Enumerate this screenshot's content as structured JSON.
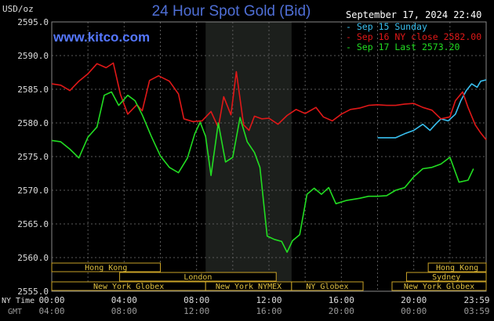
{
  "title": "24 Hour Spot Gold (Bid)",
  "site": "www.kitco.com",
  "unit_label": "USD/oz",
  "timestamp": "September 17, 2024 22:40",
  "legend": [
    {
      "label": "Sep 15 Sunday",
      "color": "#39c0f0"
    },
    {
      "label": "Sep 16 NY close 2582.00",
      "color": "#e01818"
    },
    {
      "label": "Sep 17 Last 2573.20",
      "color": "#22dd22"
    }
  ],
  "row_labels": {
    "ny_time": "NY Time",
    "gmt": "GMT"
  },
  "chart_data": {
    "type": "line",
    "title": "24 Hour Spot Gold (Bid)",
    "ylabel": "USD/oz",
    "ylim": [
      2555,
      2595
    ],
    "yticks": [
      "2555.0",
      "2560.0",
      "2565.0",
      "2570.0",
      "2575.0",
      "2580.0",
      "2585.0",
      "2590.0",
      "2595.0"
    ],
    "xlim": [
      0,
      24
    ],
    "xticks_ny": [
      "00:00",
      "04:00",
      "08:00",
      "12:00",
      "16:00",
      "20:00",
      "23:59"
    ],
    "xticks_gmt": [
      "04:00",
      "08:00",
      "12:00",
      "16:00",
      "20:00",
      "00:00",
      "03:59"
    ],
    "grid": true,
    "shaded_hours": [
      8.5,
      13.25
    ],
    "sessions": [
      {
        "name": "Hong Kong",
        "start": 0,
        "end": 6
      },
      {
        "name": "Hong Kong",
        "start": 20.8,
        "end": 24
      },
      {
        "name": "London",
        "start": 3.75,
        "end": 12.4
      },
      {
        "name": "Sydney",
        "start": 19.6,
        "end": 24
      },
      {
        "name": "New York Globex",
        "start": 0,
        "end": 8.5
      },
      {
        "name": "New York NYMEX",
        "start": 8.5,
        "end": 13.25
      },
      {
        "name": "NY Globex",
        "start": 13.25,
        "end": 17.2
      },
      {
        "name": "New York Globex",
        "start": 18.8,
        "end": 24
      }
    ],
    "series": [
      {
        "name": "Sep 15 Sunday",
        "color": "#39c0f0",
        "points": [
          [
            18.0,
            2577.8
          ],
          [
            18.5,
            2577.8
          ],
          [
            19.0,
            2577.8
          ],
          [
            19.5,
            2578.4
          ],
          [
            20.0,
            2578.9
          ],
          [
            20.5,
            2579.8
          ],
          [
            20.9,
            2578.9
          ],
          [
            21.2,
            2579.8
          ],
          [
            21.5,
            2580.6
          ],
          [
            21.9,
            2580.3
          ],
          [
            22.3,
            2581.3
          ],
          [
            22.6,
            2583.3
          ],
          [
            22.9,
            2584.8
          ],
          [
            23.2,
            2585.8
          ],
          [
            23.5,
            2585.3
          ],
          [
            23.7,
            2586.2
          ],
          [
            24.0,
            2586.4
          ]
        ]
      },
      {
        "name": "Sep 16 NY close 2582.00",
        "color": "#e01818",
        "points": [
          [
            0.0,
            2585.8
          ],
          [
            0.5,
            2585.6
          ],
          [
            1.0,
            2584.8
          ],
          [
            1.5,
            2586.2
          ],
          [
            2.0,
            2587.3
          ],
          [
            2.5,
            2588.8
          ],
          [
            3.0,
            2588.2
          ],
          [
            3.4,
            2588.9
          ],
          [
            3.8,
            2584.2
          ],
          [
            4.2,
            2581.3
          ],
          [
            4.7,
            2582.7
          ],
          [
            5.0,
            2581.8
          ],
          [
            5.4,
            2586.3
          ],
          [
            5.9,
            2587.0
          ],
          [
            6.5,
            2586.2
          ],
          [
            7.0,
            2584.3
          ],
          [
            7.3,
            2580.6
          ],
          [
            7.8,
            2580.2
          ],
          [
            8.3,
            2580.3
          ],
          [
            8.8,
            2581.7
          ],
          [
            9.2,
            2579.3
          ],
          [
            9.5,
            2583.9
          ],
          [
            9.9,
            2581.2
          ],
          [
            10.2,
            2587.6
          ],
          [
            10.6,
            2579.7
          ],
          [
            10.9,
            2578.9
          ],
          [
            11.2,
            2581.0
          ],
          [
            11.6,
            2580.6
          ],
          [
            12.0,
            2580.7
          ],
          [
            12.5,
            2579.8
          ],
          [
            13.0,
            2581.1
          ],
          [
            13.5,
            2582.0
          ],
          [
            14.0,
            2581.4
          ],
          [
            14.6,
            2582.3
          ],
          [
            15.0,
            2580.9
          ],
          [
            15.5,
            2580.3
          ],
          [
            16.0,
            2581.3
          ],
          [
            16.5,
            2582.0
          ],
          [
            17.0,
            2582.2
          ],
          [
            17.5,
            2582.6
          ],
          [
            18.0,
            2582.7
          ],
          [
            18.5,
            2582.6
          ],
          [
            19.0,
            2582.6
          ],
          [
            19.5,
            2582.8
          ],
          [
            20.0,
            2582.9
          ],
          [
            20.5,
            2582.3
          ],
          [
            21.0,
            2581.9
          ],
          [
            21.5,
            2580.6
          ],
          [
            22.0,
            2580.9
          ],
          [
            22.3,
            2583.3
          ],
          [
            22.7,
            2584.6
          ],
          [
            23.0,
            2582.3
          ],
          [
            23.4,
            2579.7
          ],
          [
            23.7,
            2578.5
          ],
          [
            24.0,
            2577.5
          ]
        ]
      },
      {
        "name": "Sep 17 Last 2573.20",
        "color": "#22dd22",
        "points": [
          [
            0.0,
            2577.4
          ],
          [
            0.5,
            2577.2
          ],
          [
            1.0,
            2576.1
          ],
          [
            1.5,
            2574.8
          ],
          [
            2.0,
            2577.9
          ],
          [
            2.5,
            2579.4
          ],
          [
            2.9,
            2584.1
          ],
          [
            3.3,
            2584.6
          ],
          [
            3.7,
            2582.6
          ],
          [
            4.2,
            2584.1
          ],
          [
            4.6,
            2583.3
          ],
          [
            5.0,
            2581.2
          ],
          [
            5.5,
            2578.0
          ],
          [
            6.0,
            2575.1
          ],
          [
            6.5,
            2573.4
          ],
          [
            7.0,
            2572.6
          ],
          [
            7.5,
            2574.8
          ],
          [
            7.9,
            2578.4
          ],
          [
            8.2,
            2580.1
          ],
          [
            8.5,
            2578.0
          ],
          [
            8.8,
            2572.2
          ],
          [
            9.2,
            2580.0
          ],
          [
            9.6,
            2574.2
          ],
          [
            10.0,
            2574.9
          ],
          [
            10.4,
            2580.8
          ],
          [
            10.8,
            2577.2
          ],
          [
            11.2,
            2575.6
          ],
          [
            11.5,
            2573.4
          ],
          [
            11.9,
            2563.2
          ],
          [
            12.3,
            2562.7
          ],
          [
            12.7,
            2562.4
          ],
          [
            13.0,
            2560.8
          ],
          [
            13.3,
            2562.5
          ],
          [
            13.7,
            2563.4
          ],
          [
            14.1,
            2569.4
          ],
          [
            14.5,
            2570.3
          ],
          [
            14.9,
            2569.4
          ],
          [
            15.3,
            2570.4
          ],
          [
            15.7,
            2568.0
          ],
          [
            16.3,
            2568.5
          ],
          [
            17.0,
            2568.8
          ],
          [
            17.5,
            2569.1
          ],
          [
            18.0,
            2569.1
          ],
          [
            18.5,
            2569.2
          ],
          [
            19.0,
            2570.0
          ],
          [
            19.5,
            2570.4
          ],
          [
            20.0,
            2572.0
          ],
          [
            20.5,
            2573.2
          ],
          [
            21.0,
            2573.4
          ],
          [
            21.5,
            2573.9
          ],
          [
            22.0,
            2574.9
          ],
          [
            22.5,
            2571.2
          ],
          [
            23.0,
            2571.5
          ],
          [
            23.3,
            2573.2
          ]
        ]
      }
    ]
  }
}
